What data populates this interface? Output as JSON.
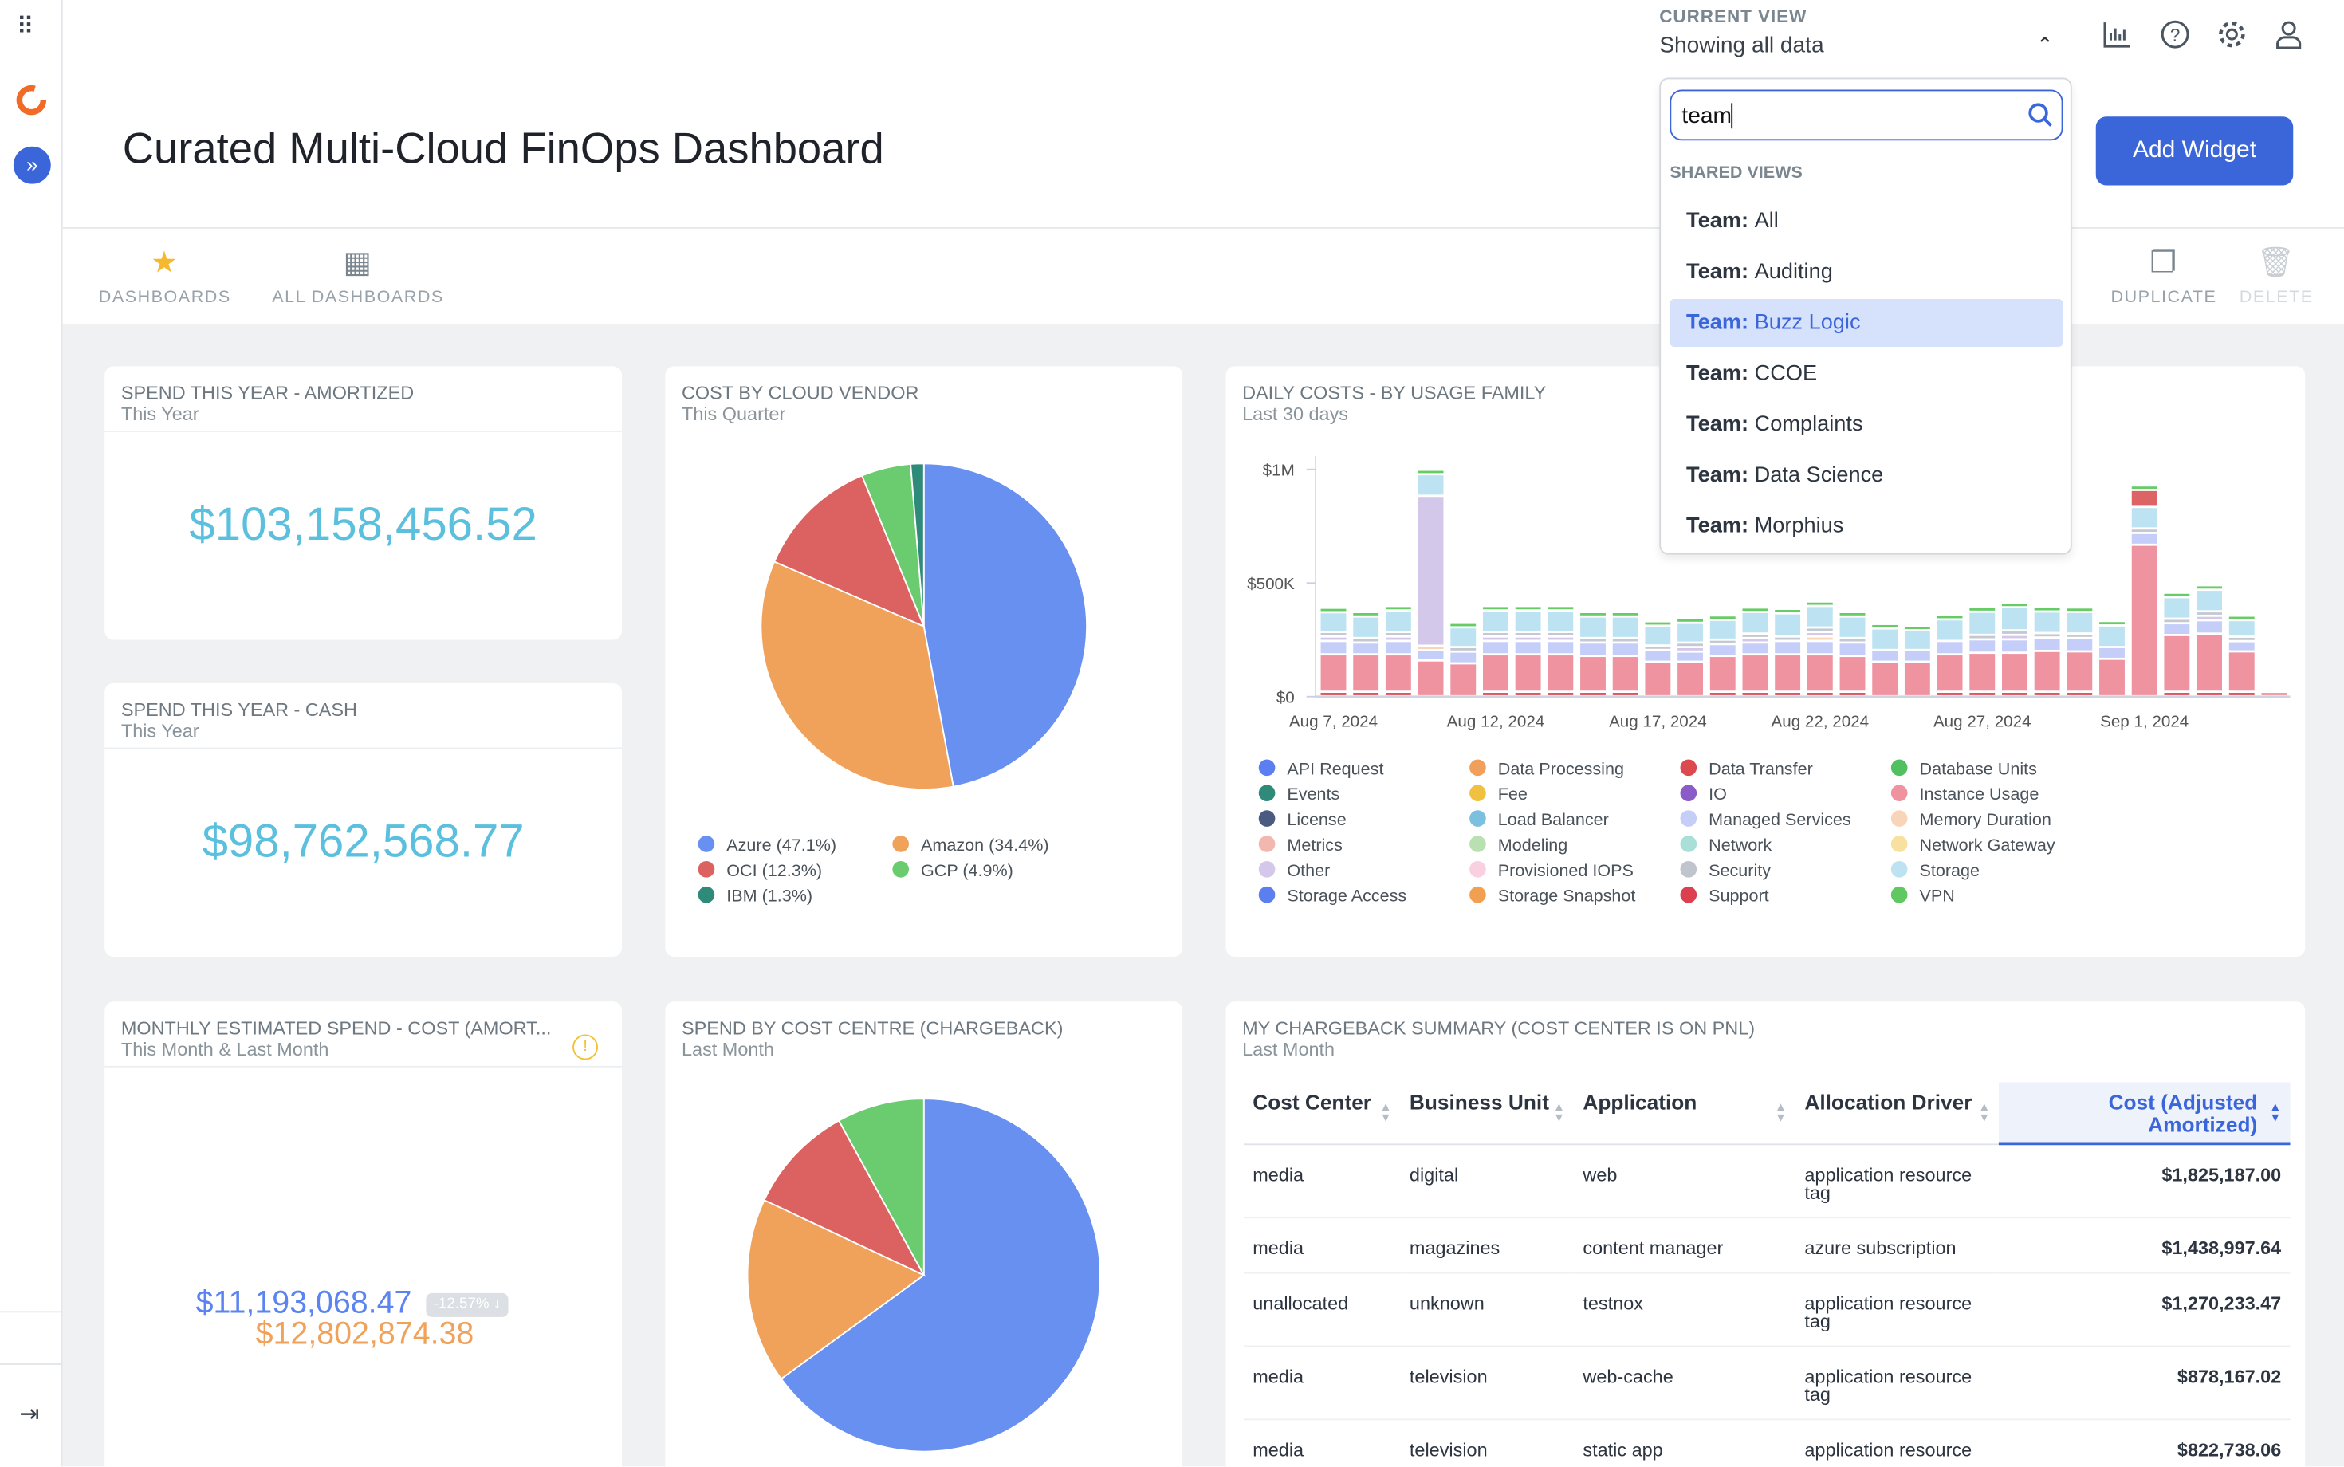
{
  "header": {
    "title": "Curated Multi-Cloud FinOps Dashboard",
    "current_view_label": "CURRENT VIEW",
    "current_view_value": "Showing all data",
    "add_widget": "Add Widget",
    "icons": [
      "bar-chart-icon",
      "help-icon",
      "gear-icon",
      "user-icon"
    ]
  },
  "toolbar": {
    "dashboards": "DASHBOARDS",
    "all_dashboards": "ALL DASHBOARDS",
    "duplicate": "DUPLICATE",
    "delete": "DELETE"
  },
  "dropdown": {
    "search_value": "team",
    "section": "SHARED VIEWS",
    "prefix": "Team:",
    "items": [
      {
        "name": "All"
      },
      {
        "name": "Auditing"
      },
      {
        "name": "Buzz Logic",
        "selected": true
      },
      {
        "name": "CCOE"
      },
      {
        "name": "Complaints"
      },
      {
        "name": "Data Science"
      },
      {
        "name": "Morphius"
      }
    ]
  },
  "cards": {
    "amortized": {
      "title": "SPEND THIS YEAR - AMORTIZED",
      "subtitle": "This Year",
      "value": "$103,158,456.52"
    },
    "cash": {
      "title": "SPEND THIS YEAR - CASH",
      "subtitle": "This Year",
      "value": "$98,762,568.77"
    },
    "vendor": {
      "title": "COST BY CLOUD VENDOR",
      "subtitle": "This Quarter"
    },
    "daily": {
      "title": "DAILY COSTS - BY USAGE FAMILY",
      "subtitle": "Last 30 days"
    },
    "monthly": {
      "title": "MONTHLY ESTIMATED SPEND - COST (AMORT...",
      "subtitle": "This Month & Last Month",
      "current": "$11,193,068.47",
      "previous": "$12,802,874.38",
      "change": "-12.57%"
    },
    "centre": {
      "title": "SPEND BY COST CENTRE (CHARGEBACK)",
      "subtitle": "Last Month"
    },
    "chargeback": {
      "title": "MY CHARGEBACK SUMMARY (COST CENTER IS ON PNL)",
      "subtitle": "Last Month",
      "columns": [
        "Cost Center",
        "Business Unit",
        "Application",
        "Allocation Driver",
        "Cost (Adjusted Amortized)"
      ],
      "rows": [
        [
          "media",
          "digital",
          "web",
          "application resource tag",
          "$1,825,187.00"
        ],
        [
          "media",
          "magazines",
          "content manager",
          "azure subscription",
          "$1,438,997.64"
        ],
        [
          "unallocated",
          "unknown",
          "testnox",
          "application resource tag",
          "$1,270,233.47"
        ],
        [
          "media",
          "television",
          "web-cache",
          "application resource tag",
          "$878,167.02"
        ],
        [
          "media",
          "television",
          "static app",
          "application resource",
          "$822,738.06"
        ]
      ]
    }
  },
  "chart_data": [
    {
      "type": "pie",
      "id": "vendor",
      "slices": [
        {
          "name": "Azure",
          "label": "Azure (47.1%)",
          "value": 47.1,
          "color": "#6890f0"
        },
        {
          "name": "Amazon",
          "label": "Amazon (34.4%)",
          "value": 34.4,
          "color": "#f0a25a"
        },
        {
          "name": "OCI",
          "label": "OCI (12.3%)",
          "value": 12.3,
          "color": "#dc6262"
        },
        {
          "name": "GCP",
          "label": "GCP (4.9%)",
          "value": 4.9,
          "color": "#6acc6e"
        },
        {
          "name": "IBM",
          "label": "IBM (1.3%)",
          "value": 1.3,
          "color": "#2e8b7a"
        }
      ]
    },
    {
      "type": "pie",
      "id": "centre",
      "slices": [
        {
          "value": 65,
          "color": "#6890f0"
        },
        {
          "value": 17,
          "color": "#f0a25a"
        },
        {
          "value": 10,
          "color": "#dc6262"
        },
        {
          "value": 8,
          "color": "#6acc6e"
        }
      ]
    },
    {
      "type": "bar",
      "stacked": true,
      "id": "daily",
      "ylim": [
        0,
        1000000
      ],
      "yticks": [
        {
          "v": 0,
          "label": "$0"
        },
        {
          "v": 500000,
          "label": "$500K"
        },
        {
          "v": 1000000,
          "label": "$1M"
        }
      ],
      "categories": [
        "Aug 7",
        "Aug 8",
        "Aug 9",
        "Aug 10",
        "Aug 11",
        "Aug 12",
        "Aug 13",
        "Aug 14",
        "Aug 15",
        "Aug 16",
        "Aug 17",
        "Aug 18",
        "Aug 19",
        "Aug 20",
        "Aug 21",
        "Aug 22",
        "Aug 23",
        "Aug 24",
        "Aug 25",
        "Aug 26",
        "Aug 27",
        "Aug 28",
        "Aug 29",
        "Aug 30",
        "Aug 31",
        "Sep 1",
        "Sep 2",
        "Sep 3",
        "Sep 4",
        "Sep 5"
      ],
      "xtick_labels": [
        {
          "i": 0,
          "label": "Aug 7, 2024"
        },
        {
          "i": 5,
          "label": "Aug 12, 2024"
        },
        {
          "i": 10,
          "label": "Aug 17, 2024"
        },
        {
          "i": 15,
          "label": "Aug 22, 2024"
        },
        {
          "i": 20,
          "label": "Aug 27, 2024"
        },
        {
          "i": 25,
          "label": "Sep 1, 2024"
        }
      ],
      "series": [
        {
          "name": "Support",
          "color": "#dc4a58",
          "values": [
            8,
            8,
            8,
            0,
            0,
            8,
            8,
            8,
            8,
            8,
            0,
            0,
            8,
            8,
            8,
            8,
            8,
            0,
            0,
            8,
            8,
            8,
            8,
            8,
            0,
            0,
            8,
            8,
            8,
            0
          ]
        },
        {
          "name": "Instance Usage",
          "color": "#f093a0",
          "values": [
            155,
            155,
            155,
            148,
            135,
            155,
            155,
            155,
            148,
            148,
            142,
            142,
            148,
            155,
            155,
            155,
            148,
            142,
            142,
            155,
            162,
            162,
            170,
            168,
            155,
            657,
            240,
            246,
            168,
            5
          ]
        },
        {
          "name": "Managed Services",
          "color": "#c4cef8",
          "values": [
            49,
            42,
            49,
            35,
            42,
            49,
            49,
            49,
            49,
            49,
            42,
            35,
            42,
            42,
            49,
            49,
            49,
            42,
            42,
            49,
            49,
            49,
            49,
            49,
            42,
            42,
            42,
            49,
            35,
            0
          ]
        },
        {
          "name": "Memory Duration",
          "color": "#f8d4b8",
          "values": [
            0,
            0,
            0,
            6,
            0,
            0,
            0,
            0,
            0,
            0,
            0,
            0,
            0,
            0,
            0,
            6,
            0,
            0,
            0,
            0,
            0,
            0,
            0,
            0,
            0,
            0,
            0,
            0,
            0,
            0
          ]
        },
        {
          "name": "Other",
          "color": "#d4c8ea",
          "values": [
            6,
            0,
            6,
            650,
            0,
            6,
            6,
            6,
            0,
            0,
            0,
            6,
            0,
            6,
            0,
            6,
            0,
            0,
            0,
            0,
            0,
            6,
            0,
            0,
            0,
            0,
            0,
            6,
            0,
            0
          ]
        },
        {
          "name": "Security",
          "color": "#c4c8d0",
          "values": [
            6,
            6,
            6,
            0,
            6,
            6,
            6,
            10,
            6,
            6,
            6,
            6,
            6,
            6,
            6,
            6,
            6,
            0,
            0,
            0,
            6,
            6,
            6,
            6,
            0,
            6,
            6,
            6,
            6,
            0
          ]
        },
        {
          "name": "Storage",
          "color": "#bde3f2",
          "values": [
            77,
            85,
            85,
            85,
            77,
            85,
            85,
            85,
            85,
            85,
            77,
            77,
            77,
            85,
            92,
            85,
            85,
            85,
            77,
            85,
            92,
            92,
            85,
            85,
            85,
            85,
            85,
            85,
            63,
            0
          ]
        },
        {
          "name": "Data Transfer",
          "color": "#dc6464",
          "values": [
            0,
            0,
            0,
            0,
            0,
            0,
            0,
            0,
            0,
            0,
            0,
            0,
            0,
            0,
            0,
            0,
            0,
            0,
            0,
            0,
            0,
            0,
            0,
            0,
            0,
            65,
            0,
            0,
            0,
            0
          ]
        },
        {
          "name": "VPN",
          "color": "#66cc66",
          "values": [
            6,
            6,
            6,
            6,
            6,
            6,
            6,
            6,
            6,
            6,
            6,
            6,
            6,
            6,
            6,
            6,
            6,
            6,
            6,
            6,
            6,
            6,
            6,
            6,
            6,
            6,
            6,
            6,
            6,
            0
          ]
        }
      ],
      "value_unit": "thousands USD",
      "legend": [
        [
          "API Request",
          "#5b7ff0"
        ],
        [
          "Events",
          "#2e8b7a"
        ],
        [
          "License",
          "#4a5a80"
        ],
        [
          "Metrics",
          "#f2b8b0"
        ],
        [
          "Other",
          "#d4c8ea"
        ],
        [
          "Storage Access",
          "#5b7ff0"
        ],
        [
          "Data Processing",
          "#f0a05a"
        ],
        [
          "Fee",
          "#f0c040"
        ],
        [
          "Load Balancer",
          "#7cc0e0"
        ],
        [
          "Modeling",
          "#b8e0b0"
        ],
        [
          "Provisioned IOPS",
          "#f8d0e0"
        ],
        [
          "Storage Snapshot",
          "#f0a050"
        ],
        [
          "Data Transfer",
          "#dc4a50"
        ],
        [
          "IO",
          "#8a5cc8"
        ],
        [
          "Managed Services",
          "#c4cef8"
        ],
        [
          "Network",
          "#a8e0d8"
        ],
        [
          "Security",
          "#c0c4cc"
        ],
        [
          "Support",
          "#dc4050"
        ],
        [
          "Database Units",
          "#50c060"
        ],
        [
          "Instance Usage",
          "#f093a0"
        ],
        [
          "Memory Duration",
          "#f8d4b8"
        ],
        [
          "Network Gateway",
          "#f8e0a0"
        ],
        [
          "Storage",
          "#bde3f2"
        ],
        [
          "VPN",
          "#60c860"
        ]
      ]
    }
  ]
}
